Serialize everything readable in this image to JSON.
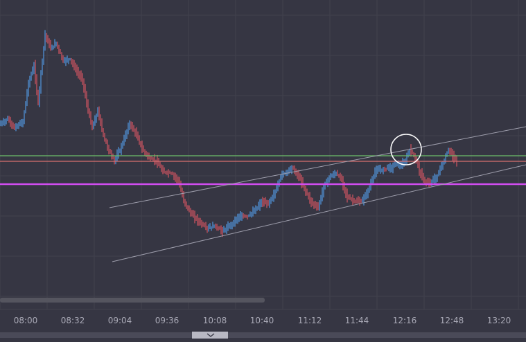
{
  "chart_data": {
    "type": "candlestick",
    "x_ticks": [
      "08:00",
      "08:32",
      "09:04",
      "09:36",
      "10:08",
      "10:40",
      "11:12",
      "11:44",
      "12:16",
      "12:48",
      "13:20"
    ],
    "grid": true,
    "colors": {
      "background": "#363643",
      "grid": "#41414e",
      "up_candle": "#4f8fd4",
      "down_candle": "#c8525f",
      "horizontal_line_top": "#6cc06a",
      "horizontal_line_mid": "#d86f6f",
      "horizontal_line_main": "#d14df0",
      "channel_lines": "#9e9eac",
      "highlight_circle": "#ffffff",
      "scrollbar": "#55555f",
      "axis_text": "#a9a9b6"
    },
    "price_path": [
      [
        0,
        180
      ],
      [
        12,
        172
      ],
      [
        22,
        185
      ],
      [
        34,
        176
      ],
      [
        42,
        120
      ],
      [
        50,
        95
      ],
      [
        56,
        150
      ],
      [
        60,
        105
      ],
      [
        66,
        50
      ],
      [
        74,
        70
      ],
      [
        82,
        62
      ],
      [
        92,
        88
      ],
      [
        102,
        85
      ],
      [
        112,
        104
      ],
      [
        120,
        115
      ],
      [
        126,
        150
      ],
      [
        134,
        185
      ],
      [
        142,
        160
      ],
      [
        150,
        195
      ],
      [
        158,
        218
      ],
      [
        166,
        232
      ],
      [
        176,
        212
      ],
      [
        188,
        178
      ],
      [
        198,
        195
      ],
      [
        206,
        215
      ],
      [
        216,
        228
      ],
      [
        226,
        232
      ],
      [
        236,
        248
      ],
      [
        248,
        250
      ],
      [
        258,
        260
      ],
      [
        266,
        290
      ],
      [
        276,
        308
      ],
      [
        288,
        320
      ],
      [
        300,
        330
      ],
      [
        310,
        326
      ],
      [
        322,
        334
      ],
      [
        334,
        325
      ],
      [
        346,
        312
      ],
      [
        358,
        312
      ],
      [
        368,
        305
      ],
      [
        378,
        292
      ],
      [
        388,
        294
      ],
      [
        398,
        278
      ],
      [
        406,
        254
      ],
      [
        414,
        248
      ],
      [
        422,
        242
      ],
      [
        432,
        255
      ],
      [
        440,
        272
      ],
      [
        450,
        292
      ],
      [
        460,
        300
      ],
      [
        468,
        270
      ],
      [
        476,
        256
      ],
      [
        486,
        250
      ],
      [
        494,
        260
      ],
      [
        502,
        285
      ],
      [
        512,
        290
      ],
      [
        522,
        292
      ],
      [
        532,
        276
      ],
      [
        542,
        248
      ],
      [
        552,
        244
      ],
      [
        562,
        244
      ],
      [
        572,
        238
      ],
      [
        584,
        235
      ],
      [
        592,
        216
      ],
      [
        600,
        228
      ],
      [
        606,
        248
      ],
      [
        614,
        262
      ],
      [
        622,
        264
      ],
      [
        632,
        254
      ],
      [
        642,
        230
      ],
      [
        648,
        215
      ],
      [
        656,
        228
      ],
      [
        660,
        232
      ]
    ]
  }
}
